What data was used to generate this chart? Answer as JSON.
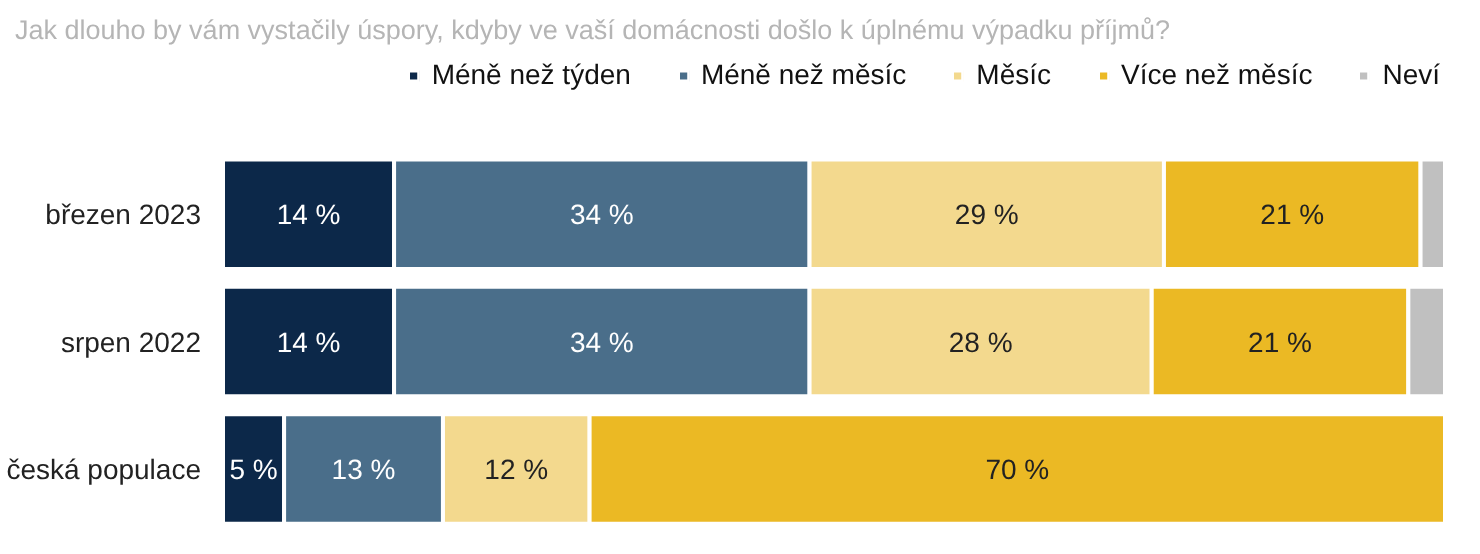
{
  "chart_data": {
    "type": "bar",
    "orientation": "horizontal",
    "stacked": true,
    "title": "Jak dlouho by vám vystačily úspory, kdyby ve vaší domácnosti došlo k úplnému výpadku příjmů?",
    "categories": [
      "březen 2023",
      "srpen 2022",
      "česká populace"
    ],
    "xlim": [
      0,
      100
    ],
    "tick_labels": "y",
    "legend": "top",
    "series": [
      {
        "name": "Méně než týden",
        "color": "#0c2849",
        "values": [
          14,
          14,
          5
        ],
        "value_labels": [
          "14 %",
          "14 %",
          "5 %"
        ]
      },
      {
        "name": "Méně než měsíc",
        "color": "#4a6e8a",
        "values": [
          34,
          34,
          13
        ],
        "value_labels": [
          "34 %",
          "34 %",
          "13 %"
        ]
      },
      {
        "name": "Měsíc",
        "color": "#f3d98e",
        "values": [
          29,
          28,
          12
        ],
        "value_labels": [
          "29 %",
          "28 %",
          "12 %"
        ]
      },
      {
        "name": "Více než měsíc",
        "color": "#ebb924",
        "values": [
          21,
          21,
          70
        ],
        "value_labels": [
          "21 %",
          "21 %",
          "70 %"
        ]
      },
      {
        "name": "Neví",
        "color": "#c0c0c0",
        "values": [
          2,
          3,
          null
        ],
        "value_labels": [
          null,
          null,
          null
        ]
      }
    ]
  }
}
